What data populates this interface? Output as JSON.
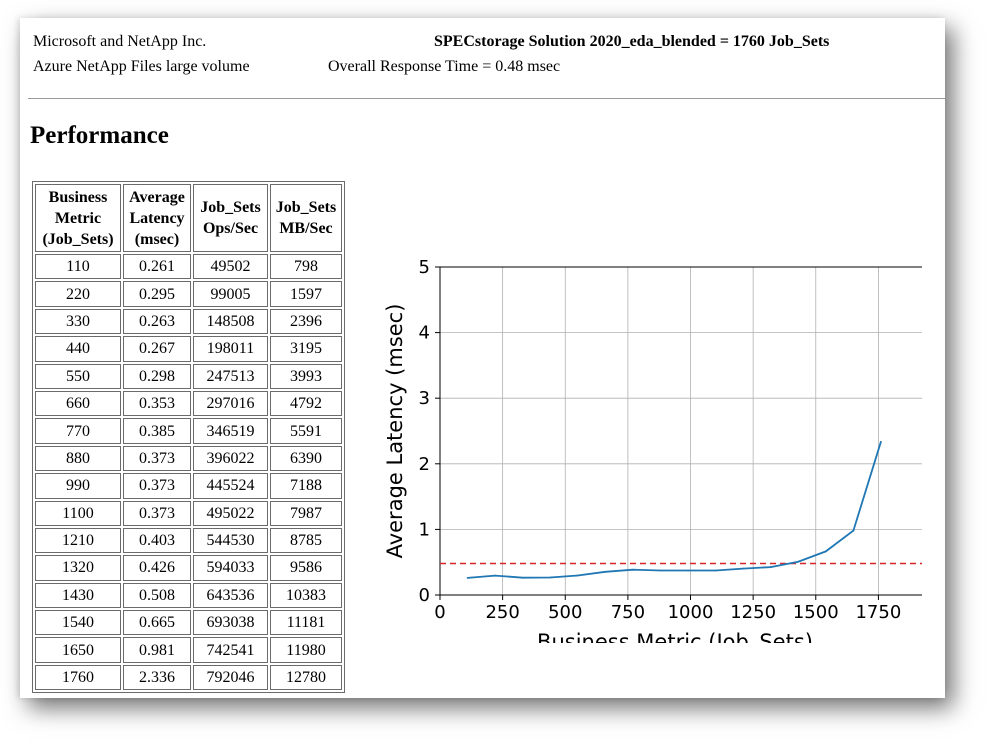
{
  "header": {
    "vendor": "Microsoft and NetApp Inc.",
    "product": "Azure NetApp Files large volume",
    "result": "SPECstorage Solution 2020_eda_blended = 1760 Job_Sets",
    "response_time": "Overall Response Time = 0.48 msec"
  },
  "section_title": "Performance",
  "table": {
    "headers": [
      "Business Metric (Job_Sets)",
      "Average Latency (msec)",
      "Job_Sets Ops/Sec",
      "Job_Sets MB/Sec"
    ],
    "rows": [
      [
        "110",
        "0.261",
        "49502",
        "798"
      ],
      [
        "220",
        "0.295",
        "99005",
        "1597"
      ],
      [
        "330",
        "0.263",
        "148508",
        "2396"
      ],
      [
        "440",
        "0.267",
        "198011",
        "3195"
      ],
      [
        "550",
        "0.298",
        "247513",
        "3993"
      ],
      [
        "660",
        "0.353",
        "297016",
        "4792"
      ],
      [
        "770",
        "0.385",
        "346519",
        "5591"
      ],
      [
        "880",
        "0.373",
        "396022",
        "6390"
      ],
      [
        "990",
        "0.373",
        "445524",
        "7188"
      ],
      [
        "1100",
        "0.373",
        "495022",
        "7987"
      ],
      [
        "1210",
        "0.403",
        "544530",
        "8785"
      ],
      [
        "1320",
        "0.426",
        "594033",
        "9586"
      ],
      [
        "1430",
        "0.508",
        "643536",
        "10383"
      ],
      [
        "1540",
        "0.665",
        "693038",
        "11181"
      ],
      [
        "1650",
        "0.981",
        "742541",
        "11980"
      ],
      [
        "1760",
        "2.336",
        "792046",
        "12780"
      ]
    ]
  },
  "chart_data": {
    "type": "line",
    "xlabel": "Business Metric (Job_Sets)",
    "ylabel": "Average Latency (msec)",
    "xlim": [
      0,
      1940
    ],
    "ylim": [
      0,
      5
    ],
    "xticks": [
      0,
      250,
      500,
      750,
      1000,
      1250,
      1500,
      1750
    ],
    "yticks": [
      0,
      1,
      2,
      3,
      4,
      5
    ],
    "grid": true,
    "series": [
      {
        "color": "#1f77b4",
        "x": [
          110,
          220,
          330,
          440,
          550,
          660,
          770,
          880,
          990,
          1100,
          1210,
          1320,
          1430,
          1540,
          1650,
          1760
        ],
        "y": [
          0.261,
          0.295,
          0.263,
          0.267,
          0.298,
          0.353,
          0.385,
          0.373,
          0.373,
          0.373,
          0.403,
          0.426,
          0.508,
          0.665,
          0.981,
          2.336
        ]
      }
    ],
    "reference_line": {
      "y": 0.48,
      "color": "#d62728",
      "style": "dashed"
    }
  }
}
